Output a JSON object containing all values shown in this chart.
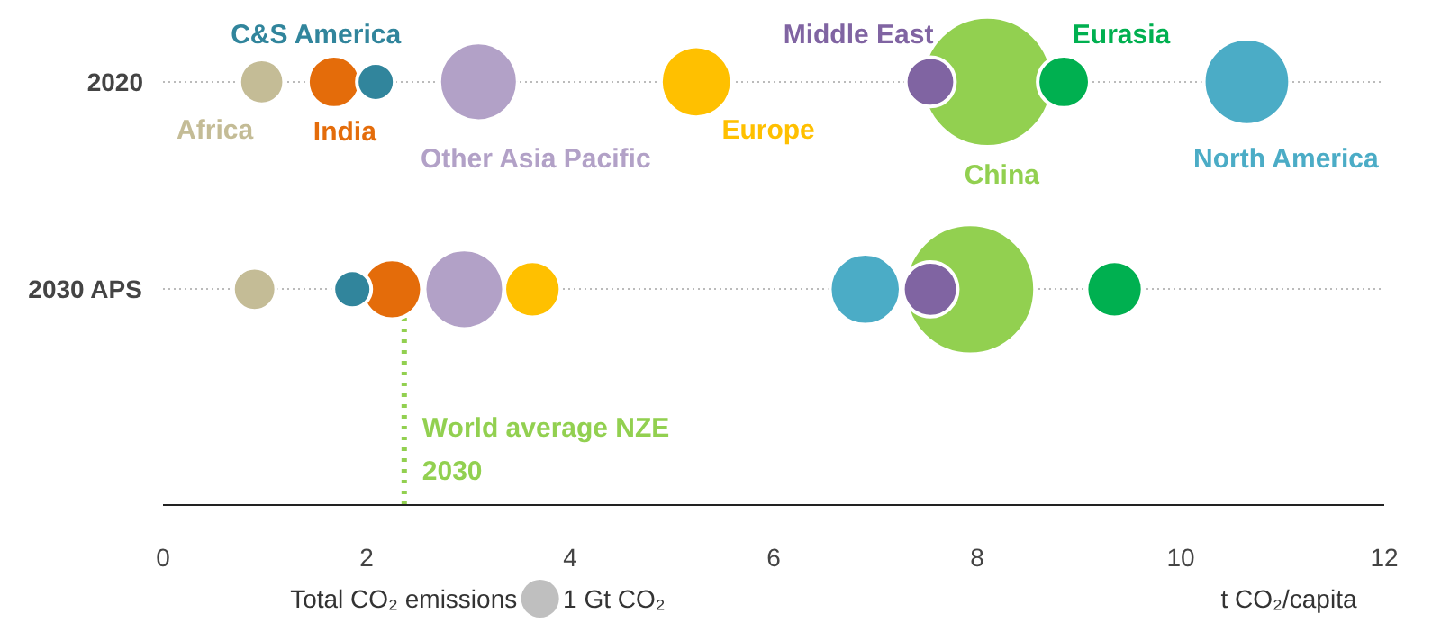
{
  "chart_data": {
    "type": "bubble",
    "orientation": "horizontal",
    "categories": [
      "2020",
      "2030 APS"
    ],
    "xlabel": "t CO₂/capita",
    "xlim": [
      0,
      12
    ],
    "xticks": [
      0,
      2,
      4,
      6,
      8,
      10,
      12
    ],
    "grid": "y",
    "legend_title": "Total CO₂ emissions",
    "size_legend": [
      {
        "value": 1,
        "label": "1 Gt CO₂"
      }
    ],
    "ref_lines": [
      {
        "axis": "x",
        "value": 2.37,
        "label": "World average NZE 2030",
        "color": "#92d050",
        "line_style": "dotted"
      }
    ],
    "series": [
      {
        "name": "Africa",
        "color": "#c4bc96",
        "values": [
          0.97,
          0.9
        ],
        "sizes": [
          1.4,
          1.3
        ]
      },
      {
        "name": "China",
        "color": "#92d050",
        "values": [
          8.1,
          7.93
        ],
        "sizes": [
          11.8,
          11.8
        ]
      },
      {
        "name": "North America",
        "color": "#4bacc6",
        "values": [
          10.65,
          6.9
        ],
        "sizes": [
          5.2,
          3.5
        ]
      },
      {
        "name": "Europe",
        "color": "#ffc000",
        "values": [
          5.24,
          3.63
        ],
        "sizes": [
          3.5,
          2.2
        ]
      },
      {
        "name": "India",
        "color": "#e46c0a",
        "values": [
          1.68,
          2.25
        ],
        "sizes": [
          1.9,
          2.5
        ]
      },
      {
        "name": "Other Asia Pacific",
        "color": "#b2a1c7",
        "values": [
          3.1,
          2.96
        ],
        "sizes": [
          4.3,
          4.4
        ]
      },
      {
        "name": "C&S America",
        "color": "#31859c",
        "values": [
          2.09,
          1.86
        ],
        "sizes": [
          1.0,
          1.0
        ]
      },
      {
        "name": "Middle East",
        "color": "#8064a2",
        "values": [
          7.54,
          7.54
        ],
        "sizes": [
          1.7,
          2.1
        ]
      },
      {
        "name": "Eurasia",
        "color": "#00b050",
        "values": [
          8.85,
          9.35
        ],
        "sizes": [
          1.9,
          2.2
        ]
      }
    ]
  }
}
